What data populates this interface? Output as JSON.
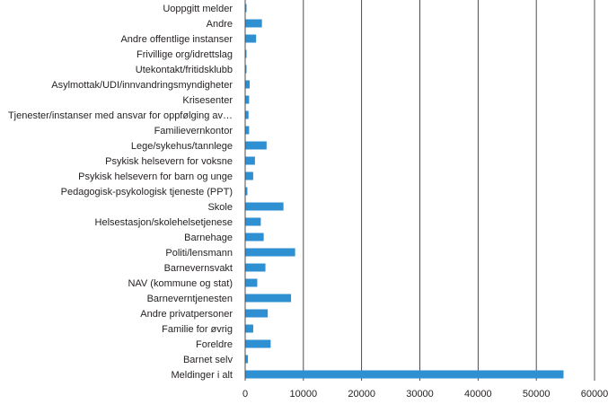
{
  "chart_data": {
    "type": "bar",
    "orientation": "horizontal",
    "title": "",
    "xlabel": "",
    "ylabel": "",
    "categories": [
      "Uoppgitt melder",
      "Andre",
      "Andre offentlige instanser",
      "Frivillige org/idrettslag",
      "Utekontakt/fritidsklubb",
      "Asylmottak/UDI/innvandringsmyndigheter",
      "Krisesenter",
      "Tjenester/instanser med ansvar for oppfølging av…",
      "Familievernkontor",
      "Lege/sykehus/tannlege",
      "Psykisk helsevern for voksne",
      "Psykisk helsevern for barn og unge",
      "Pedagogisk-psykologisk tjeneste (PPT)",
      "Skole",
      "Helsestasjon/skolehelsetjenese",
      "Barnehage",
      "Politi/lensmann",
      "Barnevernsvakt",
      "NAV (kommune og stat)",
      "Barneverntjenesten",
      "Andre privatpersoner",
      "Familie for øvrig",
      "Foreldre",
      "Barnet selv",
      "Meldinger i alt"
    ],
    "values": [
      50,
      2800,
      1800,
      80,
      150,
      700,
      600,
      500,
      600,
      3600,
      1600,
      1300,
      300,
      6500,
      2600,
      3100,
      8500,
      3400,
      2000,
      7800,
      3800,
      1300,
      4300,
      400,
      54600
    ],
    "xlim": [
      0,
      60000
    ],
    "xticks": [
      "0",
      "10000",
      "20000",
      "30000",
      "40000",
      "50000",
      "60000"
    ],
    "grid": true,
    "colors": {
      "bar": "#2e8fd1",
      "grid": "#231f20",
      "text": "#231f20"
    }
  }
}
